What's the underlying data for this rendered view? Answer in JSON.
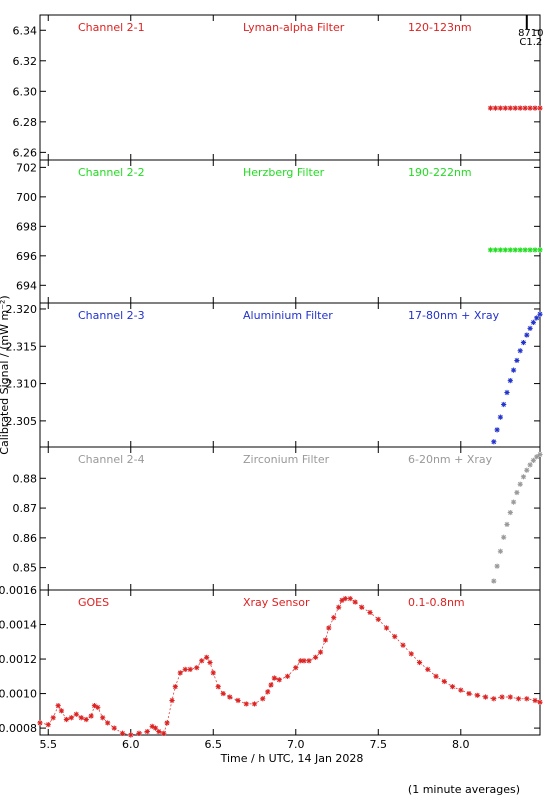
{
  "figure": {
    "ylabel": "Calibrated Signal / (mW m⁻²)",
    "xlabel": "Time / h UTC, 14 Jan 2028",
    "footnote": "(1 minute averages)",
    "event_mark": {
      "x": 8.4,
      "label_top": "8710",
      "label_bottom": "C1.2"
    }
  },
  "chart_data": [
    {
      "type": "scatter",
      "panel": "channel-2-1",
      "labels": [
        "Channel 2-1",
        "Lyman-alpha Filter",
        "120-123nm"
      ],
      "color": "#dd2222",
      "xlim": [
        5.45,
        8.48
      ],
      "ylim": [
        6.255,
        6.35
      ],
      "yticks": [
        6.26,
        6.28,
        6.3,
        6.32,
        6.34
      ],
      "ytick_labels": [
        "6.26",
        "6.28",
        "6.30",
        "6.32",
        "6.34"
      ],
      "x": [
        8.18,
        8.21,
        8.24,
        8.27,
        8.3,
        8.33,
        8.36,
        8.39,
        8.42,
        8.45,
        8.48
      ],
      "y": [
        6.289,
        6.289,
        6.289,
        6.289,
        6.289,
        6.289,
        6.289,
        6.289,
        6.289,
        6.289,
        6.289
      ]
    },
    {
      "type": "scatter",
      "panel": "channel-2-2",
      "labels": [
        "Channel 2-2",
        "Herzberg Filter",
        "190-222nm"
      ],
      "color": "#22dd22",
      "xlim": [
        5.45,
        8.48
      ],
      "ylim": [
        692.8,
        702.5
      ],
      "yticks": [
        694,
        696,
        698,
        700,
        702
      ],
      "ytick_labels": [
        "694",
        "696",
        "698",
        "700",
        "702"
      ],
      "x": [
        8.18,
        8.21,
        8.24,
        8.27,
        8.3,
        8.33,
        8.36,
        8.39,
        8.42,
        8.45,
        8.48
      ],
      "y": [
        696.4,
        696.4,
        696.4,
        696.4,
        696.4,
        696.4,
        696.4,
        696.4,
        696.4,
        696.4,
        696.4
      ]
    },
    {
      "type": "scatter",
      "panel": "channel-2-3",
      "labels": [
        "Channel 2-3",
        "Aluminium Filter",
        "17-80nm + Xray"
      ],
      "color": "#2233cc",
      "xlim": [
        5.45,
        8.48
      ],
      "ylim": [
        2.3015,
        2.3208
      ],
      "yticks": [
        2.305,
        2.31,
        2.315,
        2.32
      ],
      "ytick_labels": [
        "2.305",
        "2.310",
        "2.315",
        "2.320"
      ],
      "x": [
        8.2,
        8.22,
        8.24,
        8.26,
        8.28,
        8.3,
        8.32,
        8.34,
        8.36,
        8.38,
        8.4,
        8.42,
        8.44,
        8.46,
        8.48
      ],
      "y": [
        2.3022,
        2.3038,
        2.3055,
        2.3072,
        2.3088,
        2.3104,
        2.3118,
        2.3131,
        2.3144,
        2.3155,
        2.3165,
        2.3174,
        2.3182,
        2.3188,
        2.3193
      ]
    },
    {
      "type": "scatter",
      "panel": "channel-2-4",
      "labels": [
        "Channel 2-4",
        "Zirconium Filter",
        "6-20nm + Xray"
      ],
      "color": "#999999",
      "xlim": [
        5.45,
        8.48
      ],
      "ylim": [
        0.8425,
        0.8905
      ],
      "yticks": [
        0.85,
        0.86,
        0.87,
        0.88
      ],
      "ytick_labels": [
        "0.85",
        "0.86",
        "0.87",
        "0.88"
      ],
      "x": [
        8.2,
        8.22,
        8.24,
        8.26,
        8.28,
        8.3,
        8.32,
        8.34,
        8.36,
        8.38,
        8.4,
        8.42,
        8.44,
        8.46,
        8.48
      ],
      "y": [
        0.8455,
        0.8505,
        0.8555,
        0.8602,
        0.8645,
        0.8685,
        0.872,
        0.8752,
        0.878,
        0.8805,
        0.8827,
        0.8845,
        0.886,
        0.8872,
        0.888
      ]
    },
    {
      "type": "line",
      "panel": "goes",
      "labels": [
        "GOES",
        "Xray Sensor",
        "0.1-0.8nm"
      ],
      "color": "#dd2222",
      "xlim": [
        5.45,
        8.48
      ],
      "ylim": [
        0.00076,
        0.0016
      ],
      "yticks": [
        0.0008,
        0.001,
        0.0012,
        0.0014,
        0.0016
      ],
      "ytick_labels": [
        "0.0008",
        "0.0010",
        "0.0012",
        "0.0014",
        "0.0016"
      ],
      "xticks": [
        5.5,
        6.0,
        6.5,
        7.0,
        7.5,
        8.0
      ],
      "xtick_labels": [
        "5.5",
        "6.0",
        "6.5",
        "7.0",
        "7.5",
        "8.0"
      ],
      "x": [
        5.45,
        5.5,
        5.53,
        5.56,
        5.58,
        5.61,
        5.64,
        5.67,
        5.7,
        5.73,
        5.76,
        5.78,
        5.8,
        5.83,
        5.86,
        5.9,
        5.95,
        6.0,
        6.05,
        6.1,
        6.13,
        6.15,
        6.17,
        6.2,
        6.22,
        6.25,
        6.27,
        6.3,
        6.33,
        6.36,
        6.4,
        6.43,
        6.46,
        6.48,
        6.5,
        6.53,
        6.56,
        6.6,
        6.65,
        6.7,
        6.75,
        6.8,
        6.83,
        6.85,
        6.87,
        6.9,
        6.95,
        7.0,
        7.03,
        7.05,
        7.08,
        7.12,
        7.15,
        7.18,
        7.2,
        7.23,
        7.26,
        7.28,
        7.3,
        7.33,
        7.36,
        7.4,
        7.45,
        7.5,
        7.55,
        7.6,
        7.65,
        7.7,
        7.75,
        7.8,
        7.85,
        7.9,
        7.95,
        8.0,
        8.05,
        8.1,
        8.15,
        8.2,
        8.25,
        8.3,
        8.35,
        8.4,
        8.45,
        8.48
      ],
      "y": [
        0.00083,
        0.00082,
        0.00086,
        0.00093,
        0.0009,
        0.00085,
        0.00086,
        0.00088,
        0.00086,
        0.00085,
        0.00087,
        0.00093,
        0.00092,
        0.00086,
        0.00083,
        0.0008,
        0.00077,
        0.00076,
        0.00077,
        0.00078,
        0.00081,
        0.0008,
        0.00078,
        0.00077,
        0.00083,
        0.00096,
        0.00104,
        0.00112,
        0.00114,
        0.00114,
        0.00115,
        0.00119,
        0.00121,
        0.00118,
        0.00112,
        0.00104,
        0.001,
        0.00098,
        0.00096,
        0.00094,
        0.00094,
        0.00097,
        0.00101,
        0.00105,
        0.00109,
        0.00108,
        0.0011,
        0.00115,
        0.00119,
        0.00119,
        0.00119,
        0.00121,
        0.00124,
        0.00131,
        0.00138,
        0.00144,
        0.0015,
        0.00154,
        0.00155,
        0.00155,
        0.00153,
        0.0015,
        0.00147,
        0.00143,
        0.00138,
        0.00133,
        0.00128,
        0.00123,
        0.00118,
        0.00114,
        0.0011,
        0.00107,
        0.00104,
        0.00102,
        0.001,
        0.00099,
        0.00098,
        0.00097,
        0.00098,
        0.00098,
        0.00097,
        0.00097,
        0.00096,
        0.00095
      ]
    }
  ]
}
